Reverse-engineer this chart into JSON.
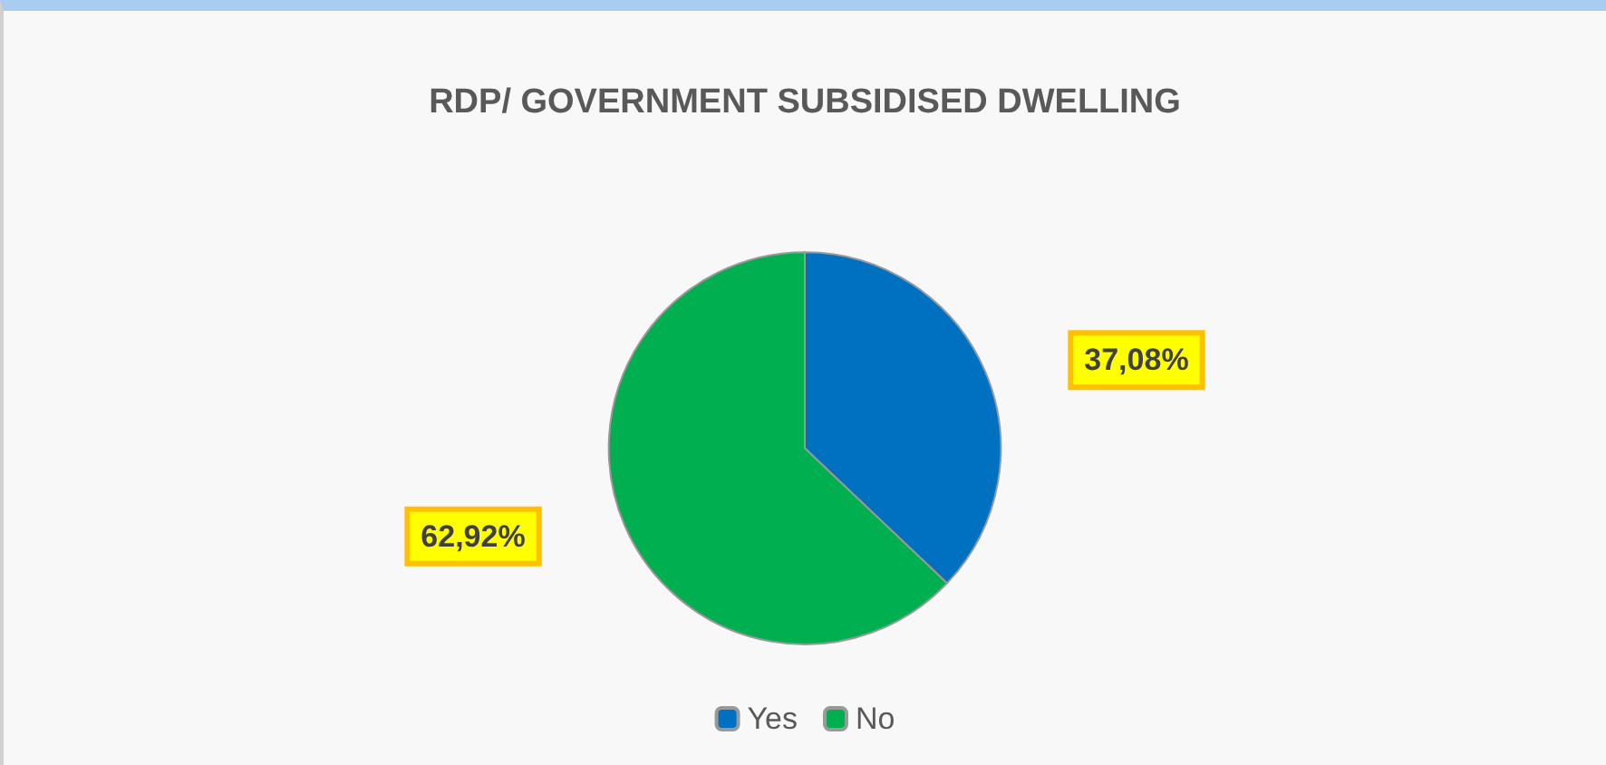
{
  "chart_data": {
    "type": "pie",
    "title": "RDP/ GOVERNMENT SUBSIDISED DWELLING",
    "categories": [
      "Yes",
      "No"
    ],
    "values": [
      37.08,
      62.92
    ],
    "colors": [
      "#0070c0",
      "#00b050"
    ],
    "value_labels": [
      "37,08%",
      "62,92%"
    ],
    "legend": "bottom"
  }
}
